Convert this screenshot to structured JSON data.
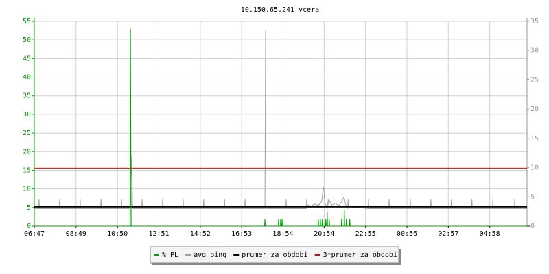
{
  "chart_data": {
    "type": "line",
    "title": "10.150.65.241 vcera",
    "xlim": [
      0,
      1440
    ],
    "xticks": [
      {
        "value": 0,
        "label": "06:47"
      },
      {
        "value": 122,
        "label": "08:49"
      },
      {
        "value": 243,
        "label": "10:50"
      },
      {
        "value": 364,
        "label": "12:51"
      },
      {
        "value": 485,
        "label": "14:52"
      },
      {
        "value": 606,
        "label": "16:53"
      },
      {
        "value": 727,
        "label": "18:54"
      },
      {
        "value": 847,
        "label": "20:54"
      },
      {
        "value": 968,
        "label": "22:55"
      },
      {
        "value": 1089,
        "label": "00:56"
      },
      {
        "value": 1210,
        "label": "02:57"
      },
      {
        "value": 1331,
        "label": "04:58"
      }
    ],
    "ylim": [
      0,
      55
    ],
    "yticks": [
      0,
      5,
      10,
      15,
      20,
      25,
      30,
      35,
      40,
      45,
      50,
      55
    ],
    "y2lim": [
      0,
      35
    ],
    "y2ticks": [
      0,
      5,
      10,
      15,
      20,
      25,
      30,
      35
    ],
    "grid": true,
    "legend": "bottom",
    "series": [
      {
        "name": "% PL",
        "color": "#00a000",
        "x": [
          0,
          280,
          281,
          282,
          283,
          673,
          674,
          675,
          713,
          714,
          715,
          719,
          720,
          721,
          723,
          724,
          725,
          829,
          830,
          831,
          835,
          836,
          837,
          841,
          842,
          843,
          851,
          852,
          853,
          855,
          856,
          857,
          861,
          862,
          863,
          897,
          898,
          899,
          905,
          906,
          907,
          911,
          912,
          913,
          921,
          922,
          923,
          1440
        ],
        "values": [
          0,
          0,
          53,
          26,
          0,
          0,
          2,
          0,
          0,
          2,
          0,
          0,
          2,
          0,
          0,
          2,
          0,
          0,
          2,
          0,
          0,
          2,
          0,
          0,
          2,
          0,
          0,
          2,
          0,
          0,
          4,
          0,
          0,
          2,
          0,
          0,
          2,
          0,
          0,
          4.5,
          0,
          0,
          2,
          0,
          0,
          2,
          0,
          0
        ]
      },
      {
        "name": "avg ping",
        "color": "#a0a0a0",
        "axis": "y2",
        "x": [
          0,
          13,
          14,
          15,
          73,
          74,
          75,
          133,
          134,
          135,
          194,
          195,
          196,
          254,
          255,
          256,
          280,
          281,
          283,
          285,
          287,
          314,
          315,
          316,
          374,
          375,
          376,
          434,
          435,
          436,
          494,
          495,
          496,
          555,
          556,
          557,
          615,
          616,
          617,
          674,
          675,
          676,
          677,
          735,
          736,
          737,
          795,
          796,
          797,
          800,
          810,
          820,
          830,
          840,
          845,
          850,
          855,
          856,
          857,
          860,
          870,
          880,
          890,
          900,
          905,
          910,
          916,
          917,
          918,
          920,
          976,
          977,
          978,
          1036,
          1037,
          1038,
          1098,
          1099,
          1100,
          1158,
          1159,
          1160,
          1218,
          1219,
          1220,
          1278,
          1279,
          1280,
          1339,
          1340,
          1341,
          1403,
          1404,
          1405,
          1440
        ],
        "values": [
          3.0,
          3.0,
          4.6,
          3.0,
          3.0,
          4.6,
          3.0,
          3.0,
          4.6,
          3.0,
          3.0,
          4.6,
          3.0,
          3.0,
          4.6,
          3.0,
          3.0,
          4.0,
          8.0,
          12.0,
          3.0,
          3.0,
          4.6,
          3.0,
          3.0,
          4.6,
          3.0,
          3.0,
          4.6,
          3.0,
          3.0,
          4.6,
          3.0,
          3.0,
          4.6,
          3.0,
          3.0,
          4.6,
          3.0,
          3.0,
          19,
          33.5,
          3.0,
          3.0,
          4.6,
          3.0,
          3.0,
          4.6,
          3.0,
          3.6,
          3.4,
          3.8,
          3.5,
          4.2,
          6.7,
          3.8,
          3.0,
          4.6,
          3.0,
          4.5,
          3.6,
          3.9,
          3.5,
          4.3,
          5.0,
          3.7,
          3.0,
          4.6,
          3.0,
          3.3,
          3.0,
          4.6,
          3.0,
          3.0,
          4.6,
          3.0,
          3.0,
          4.6,
          3.0,
          3.0,
          4.6,
          3.0,
          3.0,
          4.6,
          3.0,
          3.0,
          4.6,
          3.0,
          3.0,
          4.6,
          3.0,
          3.0,
          4.6,
          3.0,
          3.0
        ]
      },
      {
        "name": "prumer za obdobi",
        "color": "#000000",
        "axis": "y2",
        "x": [
          0,
          1440
        ],
        "values": [
          3.3,
          3.3
        ]
      },
      {
        "name": "3*prumer za obdobi",
        "color": "#e00000",
        "axis": "y2",
        "x": [
          0,
          1440
        ],
        "values": [
          9.9,
          9.9
        ]
      }
    ]
  }
}
